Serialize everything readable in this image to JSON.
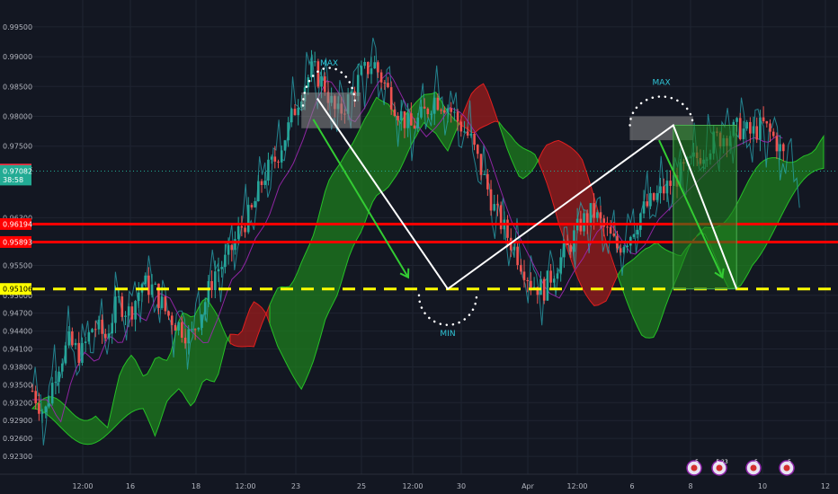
{
  "chart_data": {
    "type": "line",
    "title": "",
    "xlabel": "",
    "ylabel": "",
    "ylim": [
      0.92,
      0.9995
    ],
    "grid": true,
    "x_ticks": [
      "12:00",
      "16",
      "18",
      "12:00",
      "23",
      "25",
      "12:00",
      "30",
      "Apr",
      "12:00",
      "6",
      "8",
      "10",
      "12"
    ],
    "y_ticks": [
      "0.99500",
      "0.99000",
      "0.98500",
      "0.98000",
      "0.97500",
      "0.96300",
      "0.95500",
      "0.95000",
      "0.94700",
      "0.94400",
      "0.94100",
      "0.93800",
      "0.93500",
      "0.93200",
      "0.92900",
      "0.92600",
      "0.92300"
    ],
    "series": [
      {
        "values": [
          0.934,
          0.93,
          0.938,
          0.942,
          0.94,
          0.945,
          0.943,
          0.949,
          0.947,
          0.952,
          0.951,
          0.947,
          0.945,
          0.943,
          0.948,
          0.954,
          0.956,
          0.961,
          0.964,
          0.97,
          0.973,
          0.978,
          0.984,
          0.988,
          0.985,
          0.98,
          0.983,
          0.987,
          0.989,
          0.985,
          0.981,
          0.978,
          0.98,
          0.983,
          0.982,
          0.979,
          0.976,
          0.97,
          0.964,
          0.96,
          0.956,
          0.952,
          0.951,
          0.955,
          0.958,
          0.962,
          0.964,
          0.961,
          0.958,
          0.96,
          0.964,
          0.966,
          0.968,
          0.97,
          0.972,
          0.974,
          0.976,
          0.977,
          0.978,
          0.977,
          0.9785,
          0.976,
          0.972,
          0.97
        ]
      }
    ],
    "price_labels": [
      {
        "text": "0.97107",
        "bg": "#f23645",
        "fg": "#ffffff"
      },
      {
        "text": "0.97082",
        "bg": "#22ab94",
        "fg": "#ffffff"
      },
      {
        "text": "38:58",
        "bg": "#22ab94",
        "fg": "#ffffff"
      },
      {
        "text": "0.96194",
        "bg": "#ff0000",
        "fg": "#ffffff"
      },
      {
        "text": "0.95893",
        "bg": "#ff0000",
        "fg": "#ffffff"
      },
      {
        "text": "0.95106",
        "bg": "#ffff00",
        "fg": "#000000"
      }
    ],
    "levels": [
      {
        "price": 0.96194,
        "color": "#ff0000",
        "style": "solid"
      },
      {
        "price": 0.95893,
        "color": "#ff0000",
        "style": "solid"
      },
      {
        "price": 0.95106,
        "color": "#ffff00",
        "style": "dashed"
      }
    ],
    "annotations": [
      {
        "text": "MAX",
        "color": "#2fc6d8"
      },
      {
        "text": "MIN",
        "color": "#2fc6d8"
      },
      {
        "text": "MAX",
        "color": "#2fc6d8"
      }
    ],
    "event_badges": [
      "5",
      "5 23",
      "5",
      "5"
    ],
    "colors": {
      "background": "#131722",
      "up": "#26a69a",
      "down": "#ef5350",
      "cloud_green": "#1e7d1e",
      "cloud_red": "#9c1c1c",
      "axis_text": "#b2b5be",
      "grid": "#1f2431"
    }
  }
}
